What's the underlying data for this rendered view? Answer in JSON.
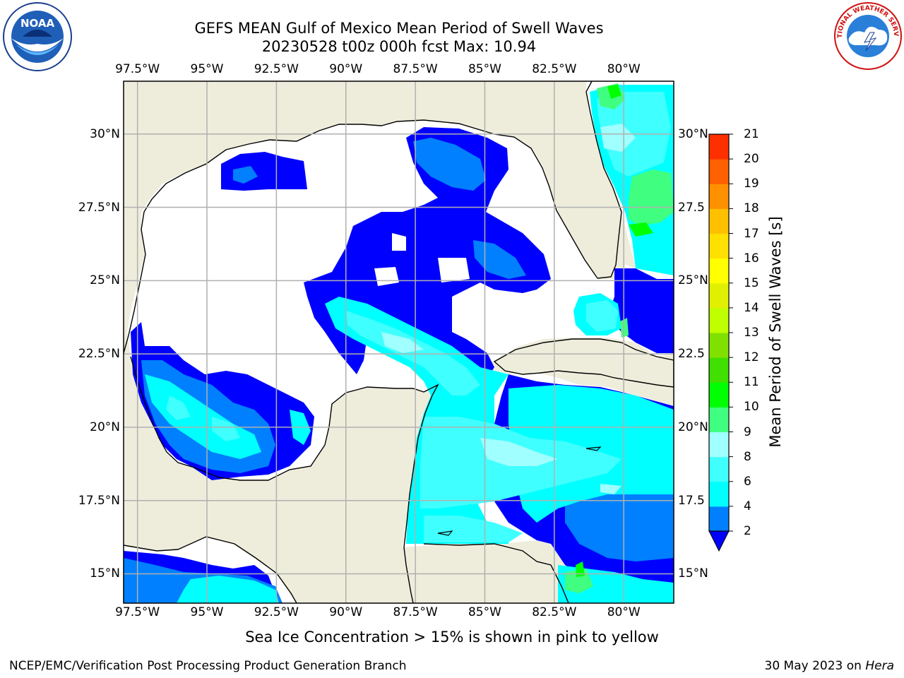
{
  "header": {
    "title_line1": "GEFS MEAN Gulf of Mexico Mean Period of Swell Waves",
    "title_line2": "20230528 t00z 000h fcst   Max: 10.94"
  },
  "map": {
    "lon_ticks": [
      "97.5°W",
      "95°W",
      "92.5°W",
      "90°W",
      "87.5°W",
      "85°W",
      "82.5°W",
      "80°W"
    ],
    "lat_ticks": [
      "30°N",
      "27.5°N",
      "25°N",
      "22.5°N",
      "20°N",
      "17.5°N",
      "15°N"
    ],
    "lat_ticks_right": [
      "30°N",
      "27.5",
      "25°N",
      "22.5",
      "20°N",
      "17.5",
      "15°N"
    ],
    "land_color": "#eeeddc",
    "grid_color": "#b0b0b0"
  },
  "colorbar": {
    "label": "Mean Period of Swell Waves [s]",
    "ticks": [
      "2",
      "4",
      "6",
      "8",
      "9",
      "10",
      "11",
      "12",
      "13",
      "14",
      "15",
      "16",
      "17",
      "18",
      "19",
      "20",
      "21"
    ],
    "colors": [
      "#0000ff",
      "#0080ff",
      "#00ffff",
      "#40ffff",
      "#a0ffff",
      "#40ff80",
      "#00ff00",
      "#40e000",
      "#80e000",
      "#c0ff00",
      "#e0f000",
      "#ffff00",
      "#ffe000",
      "#ffc000",
      "#ff9000",
      "#ff6000",
      "#ff3000",
      "#ff0000"
    ]
  },
  "note": "Sea Ice Concentration > 15% is shown in pink to yellow",
  "footer": {
    "left": "NCEP/EMC/Verification Post Processing Product Generation Branch",
    "right_prefix": "30 May 2023 on",
    "right_host": "Hera"
  },
  "logos": {
    "left": "NOAA",
    "right": "NATIONAL WEATHER SERVICE"
  }
}
